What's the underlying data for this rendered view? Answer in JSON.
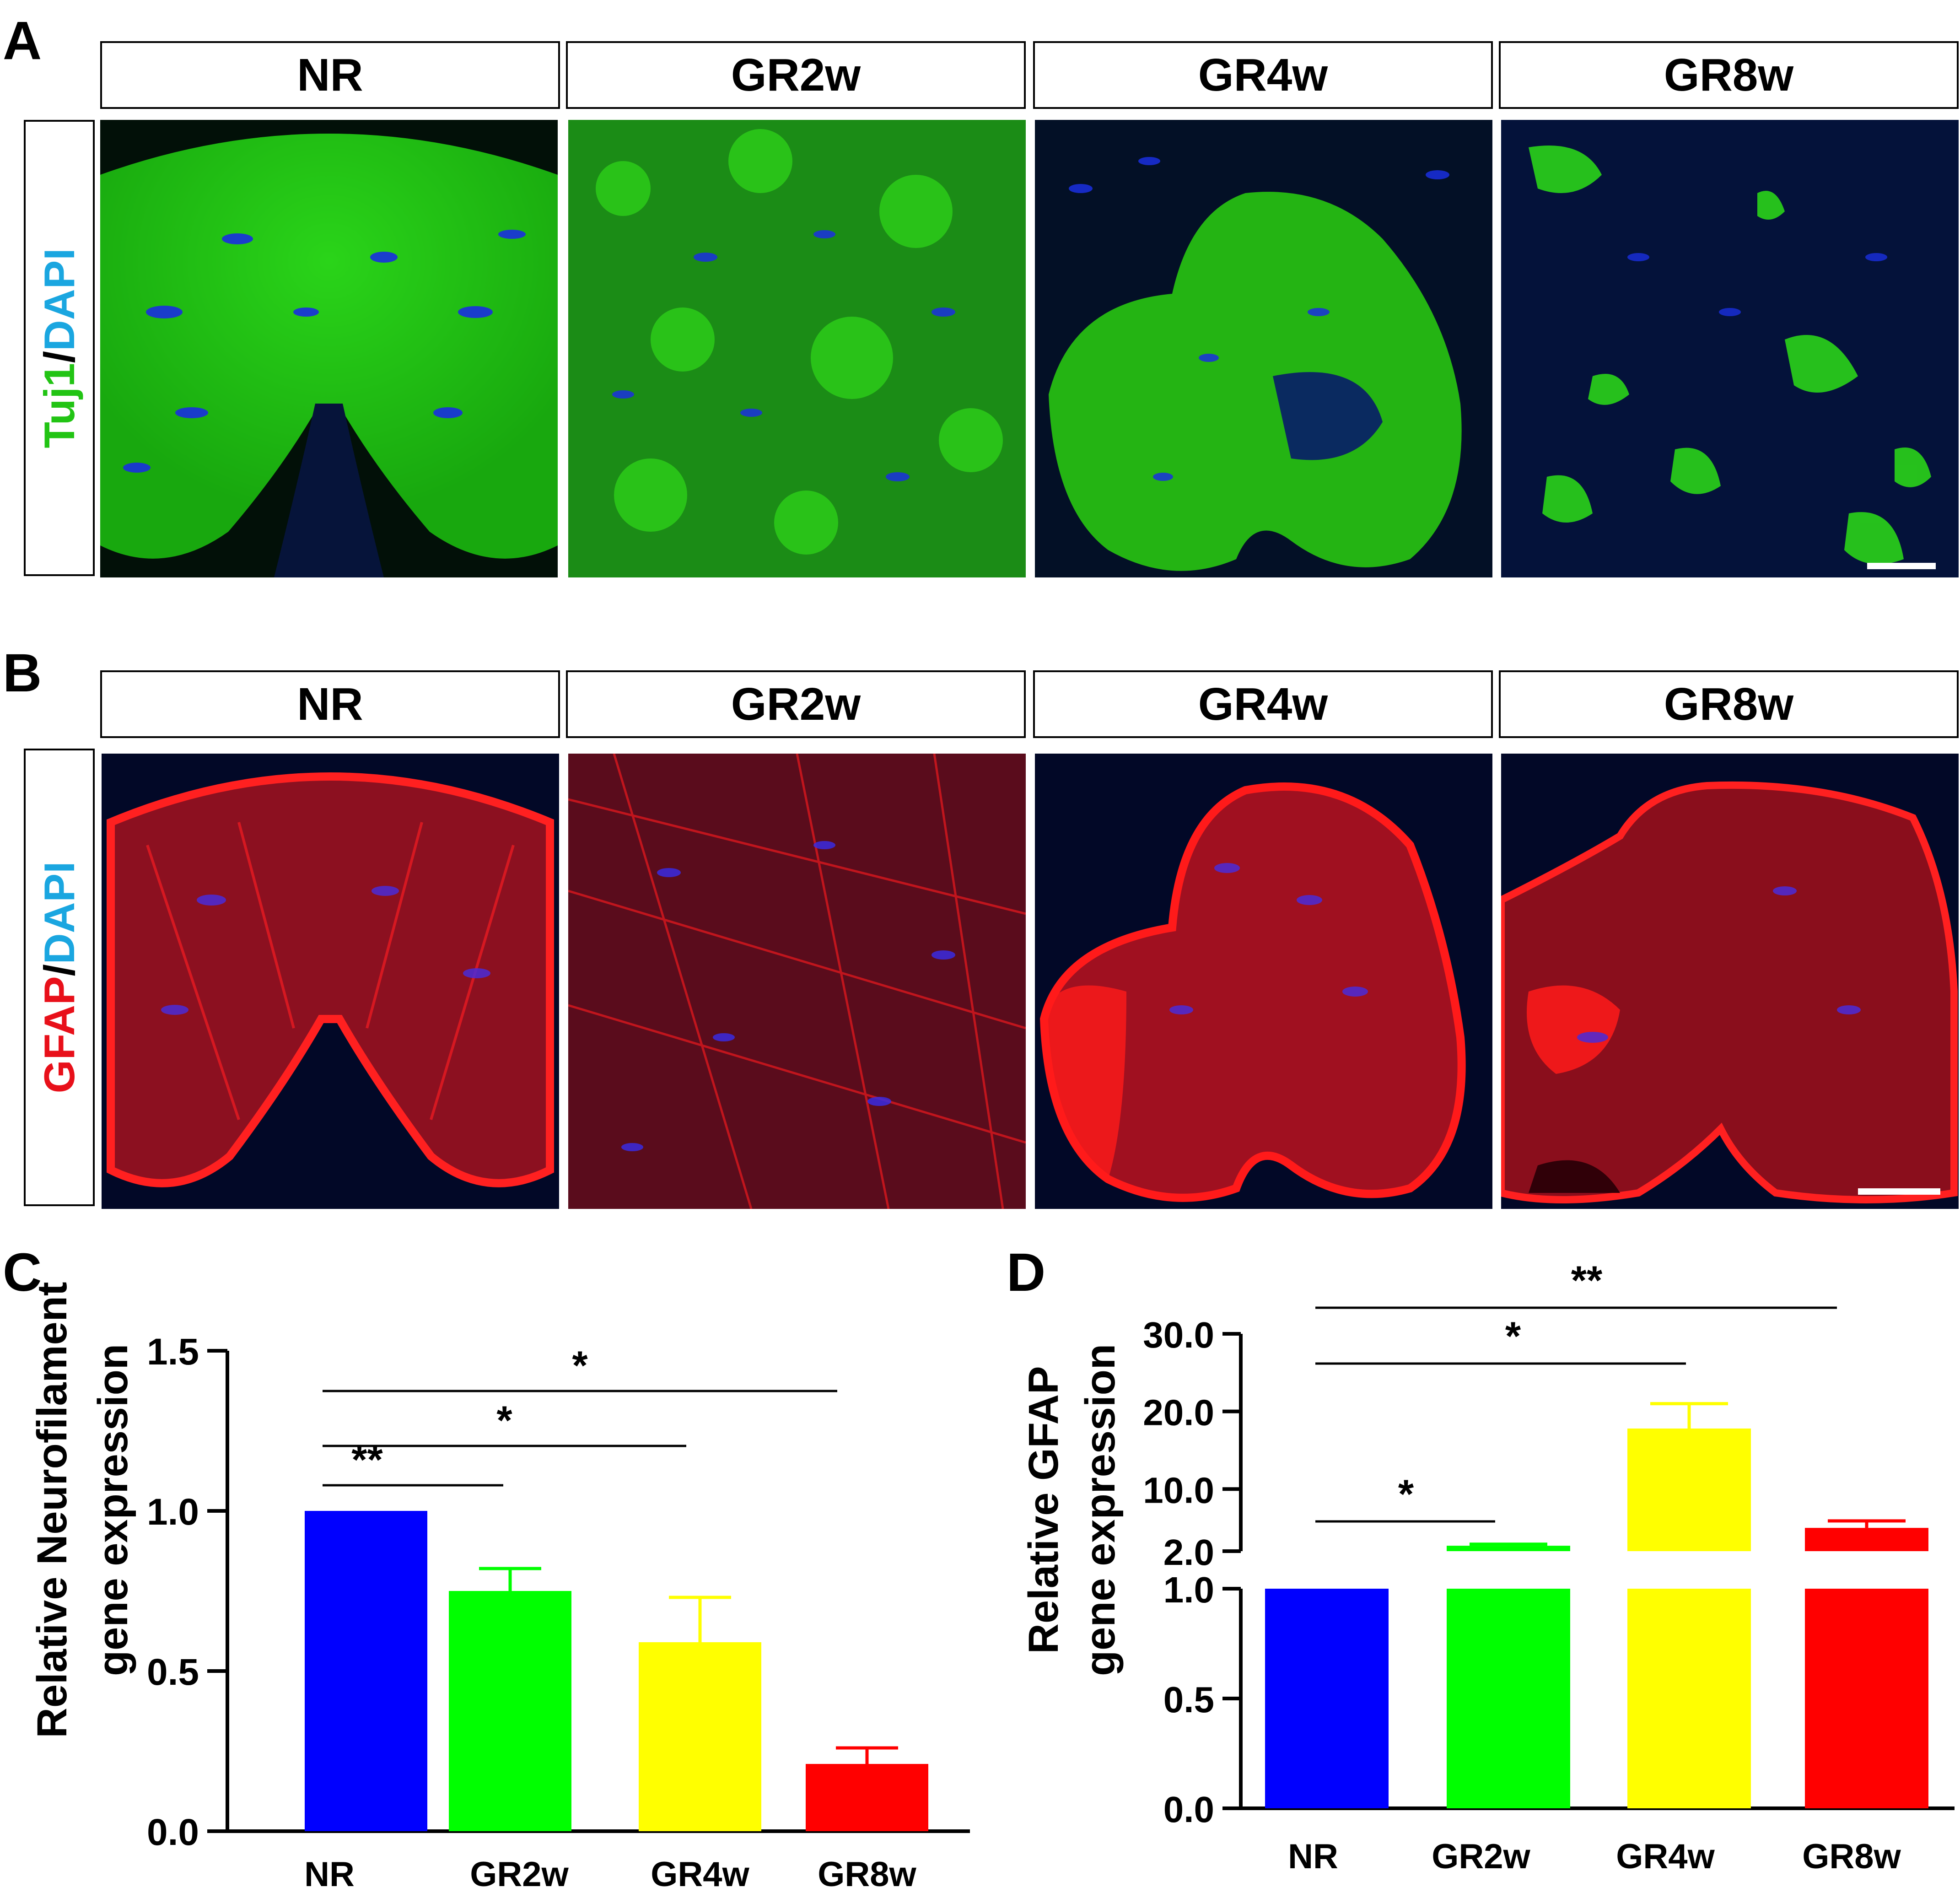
{
  "panels": {
    "A": {
      "letter": "A",
      "columns": [
        "NR",
        "GR2w",
        "GR4w",
        "GR8w"
      ],
      "stain": {
        "marker": "Tuj1",
        "sep": "/",
        "counter": "DAPI",
        "marker_color": "#22c414",
        "counter_color": "#1aa6e0"
      }
    },
    "B": {
      "letter": "B",
      "columns": [
        "NR",
        "GR2w",
        "GR4w",
        "GR8w"
      ],
      "stain": {
        "marker": "GFAP",
        "sep": "/",
        "counter": "DAPI",
        "marker_color": "#e8101a",
        "counter_color": "#1aa6e0"
      }
    },
    "C": {
      "letter": "C"
    },
    "D": {
      "letter": "D"
    }
  },
  "chart_data": [
    {
      "type": "bar",
      "panel": "C",
      "categories": [
        "NR",
        "GR2w",
        "GR4w",
        "GR8w"
      ],
      "values": [
        1.0,
        0.75,
        0.59,
        0.21
      ],
      "errors": [
        0.0,
        0.07,
        0.14,
        0.05
      ],
      "colors": [
        "#0000ff",
        "#00ff00",
        "#ffff00",
        "#ff0000"
      ],
      "ylabel_line1": "Relative Neurofilament",
      "ylabel_line2": "gene expression",
      "ylim": [
        0,
        1.5
      ],
      "yticks": [
        0.0,
        0.5,
        1.0,
        1.5
      ],
      "ytick_labels": [
        "0.0",
        "0.5",
        "1.0",
        "1.5"
      ],
      "significance": [
        {
          "from": "NR",
          "to": "GR2w",
          "label": "**"
        },
        {
          "from": "NR",
          "to": "GR4w",
          "label": "*"
        },
        {
          "from": "NR",
          "to": "GR8w",
          "label": "*"
        }
      ]
    },
    {
      "type": "bar",
      "panel": "D",
      "broken_axis": true,
      "categories": [
        "NR",
        "GR2w",
        "GR4w",
        "GR8w"
      ],
      "values": [
        1.0,
        2.7,
        17.8,
        5.0
      ],
      "errors": [
        0.0,
        0.2,
        3.2,
        0.9
      ],
      "colors": [
        "#0000ff",
        "#00ff00",
        "#ffff00",
        "#ff0000"
      ],
      "ylabel_line1": "Relative GFAP",
      "ylabel_line2": "gene expression",
      "lower_range": [
        0,
        1.0
      ],
      "upper_range": [
        2.0,
        30.0
      ],
      "lower_ticks": [
        0.0,
        0.5,
        1.0
      ],
      "lower_tick_labels": [
        "0.0",
        "0.5",
        "1.0"
      ],
      "upper_ticks": [
        2.0,
        10.0,
        20.0,
        30.0
      ],
      "upper_tick_labels": [
        "2.0",
        "10.0",
        "20.0",
        "30.0"
      ],
      "significance": [
        {
          "from": "NR",
          "to": "GR2w",
          "label": "*"
        },
        {
          "from": "NR",
          "to": "GR4w",
          "label": "*"
        },
        {
          "from": "NR",
          "to": "GR8w",
          "label": "**"
        }
      ]
    }
  ]
}
